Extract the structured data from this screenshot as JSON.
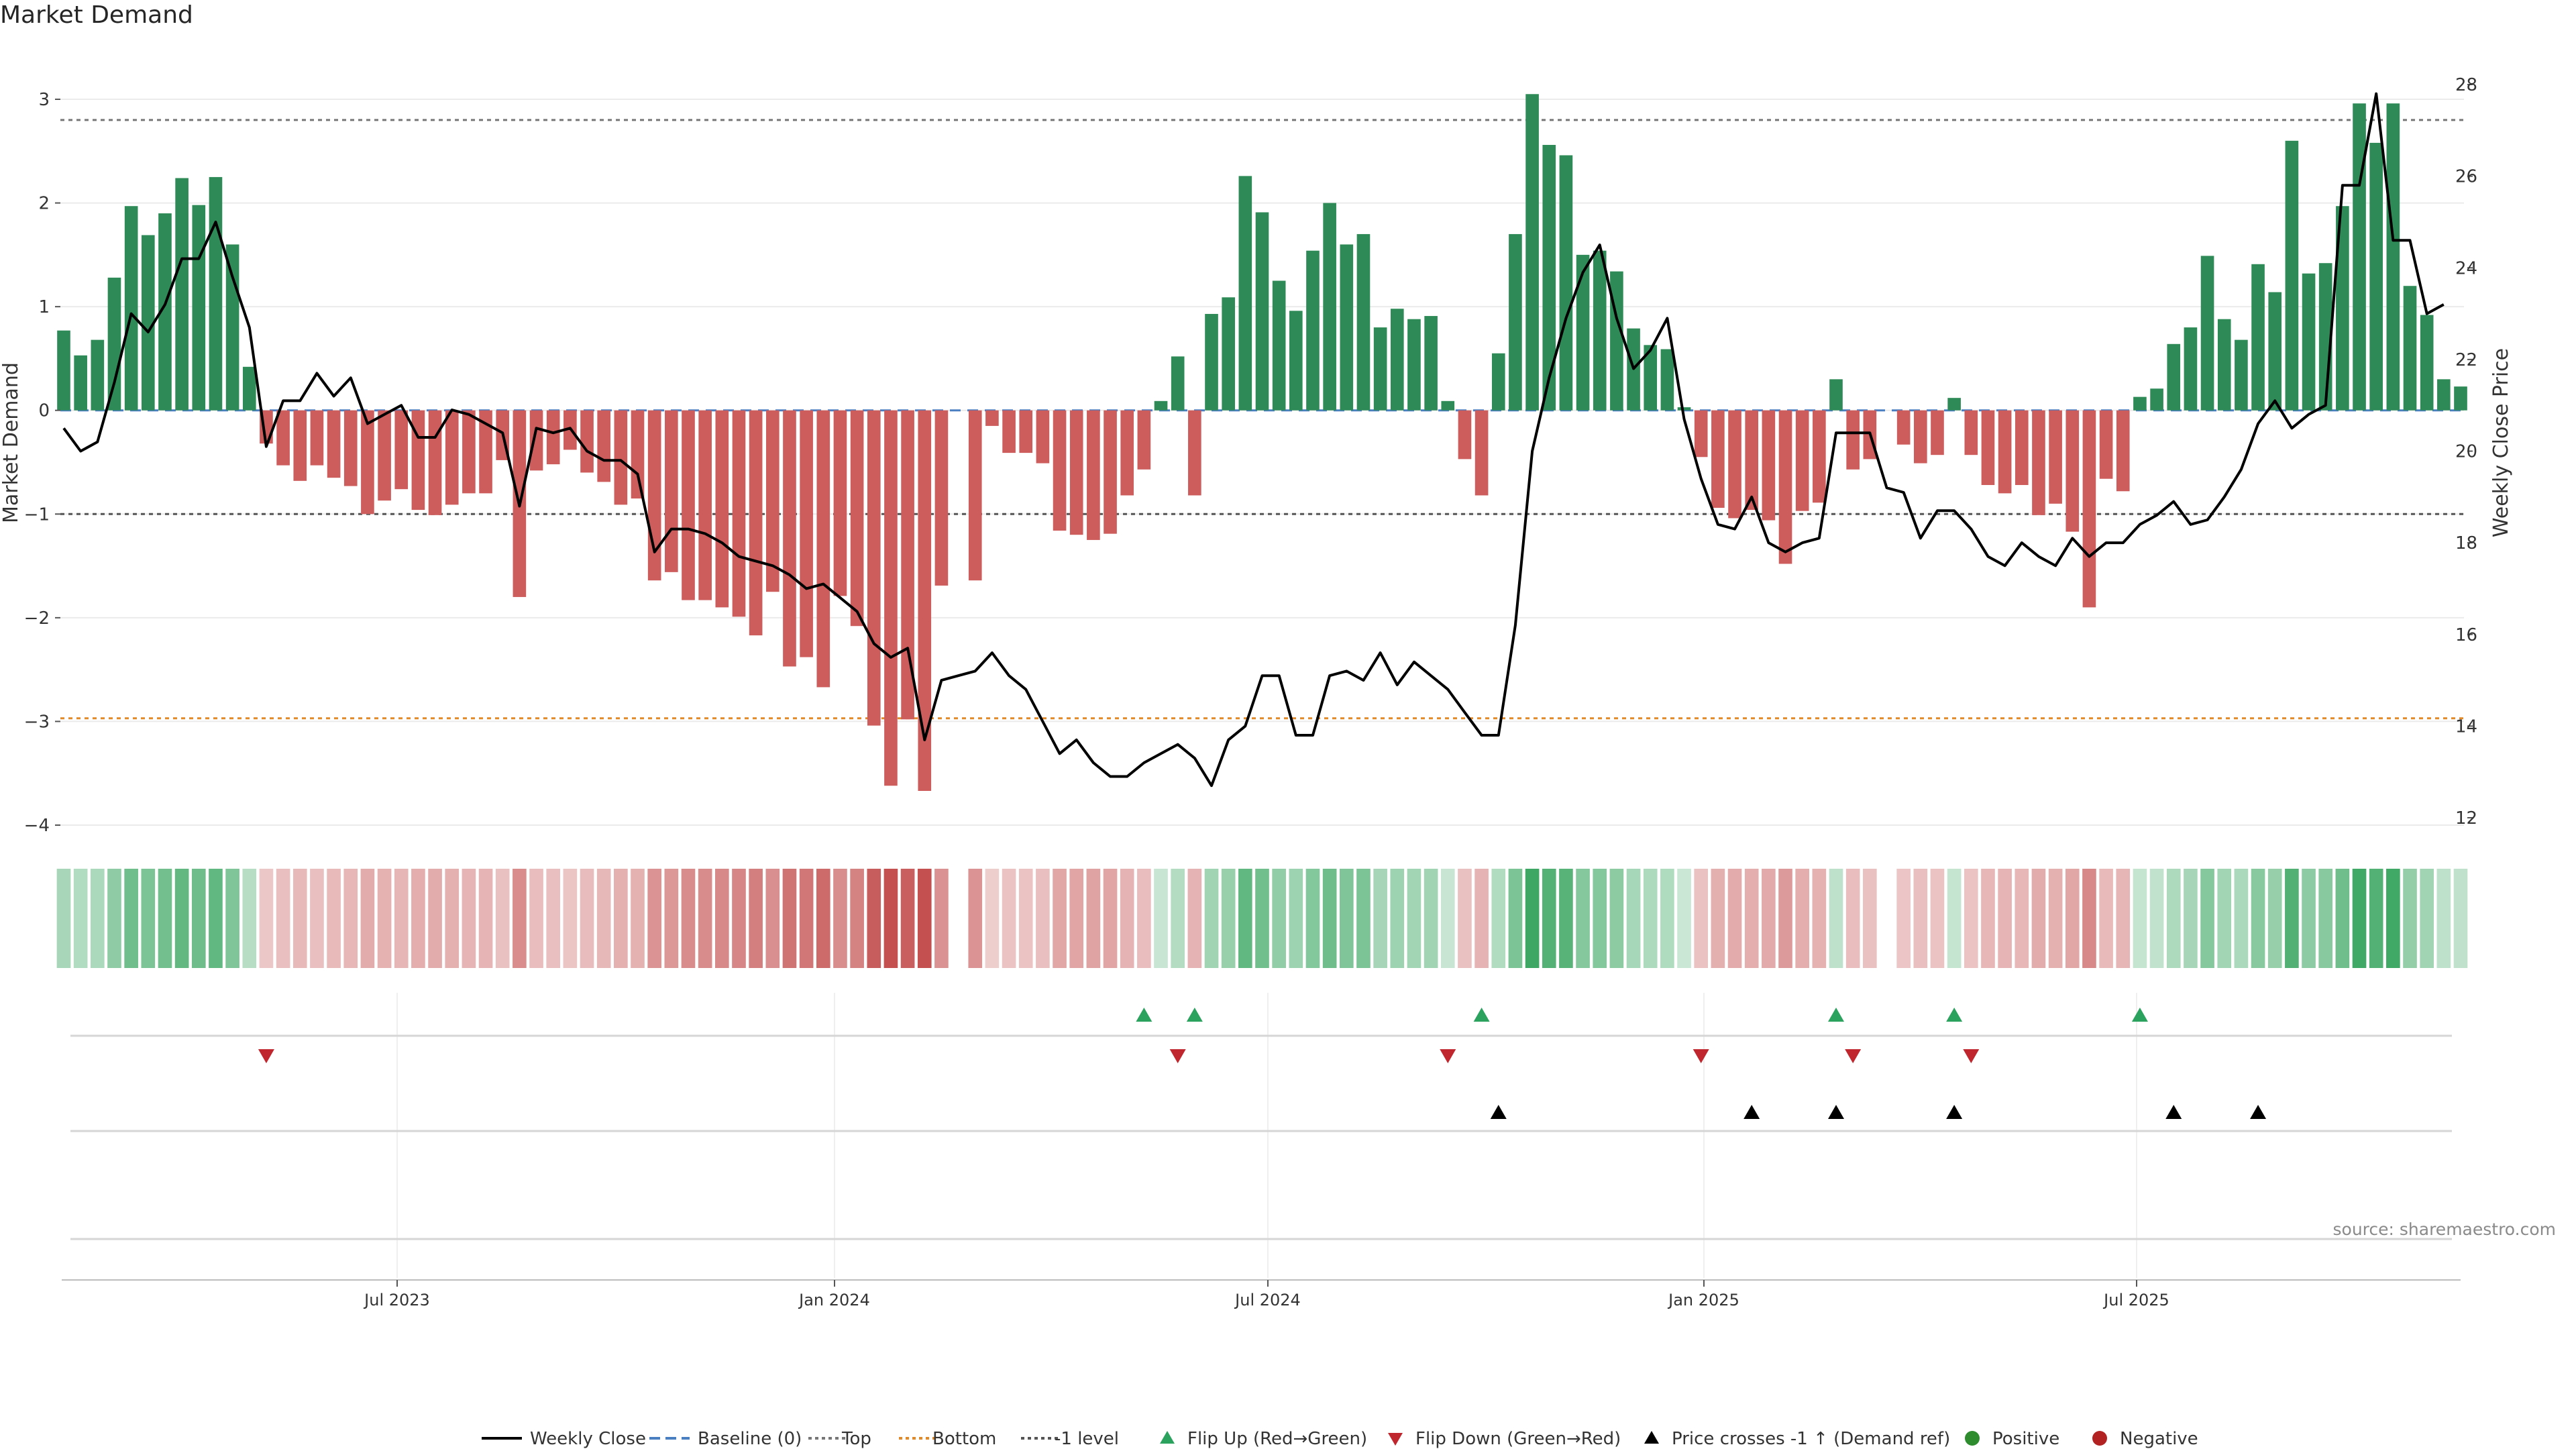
{
  "title": "Market Demand",
  "source": "source: sharemaestro.com",
  "colors": {
    "positive": "#2e8b57",
    "negative": "#cd5c5c",
    "price": "#000000",
    "flip_up": "#2ca25f",
    "flip_down": "#c0262d",
    "cross": "#000000",
    "top_line": "#777777",
    "bottom_line": "#e08a2c",
    "baseline": "#4a7fc1",
    "neg1_line": "#555555"
  },
  "chart_data": {
    "type": "bar",
    "xlabel": "",
    "ylabel": "Market Demand",
    "y2label": "Weekly Close Price",
    "ylim": [
      -4,
      3
    ],
    "y2lim": [
      12,
      28
    ],
    "yticks": [
      {
        "v": 3,
        "t": "3"
      },
      {
        "v": 2,
        "t": "2"
      },
      {
        "v": 1,
        "t": "1"
      },
      {
        "v": 0,
        "t": "0"
      },
      {
        "v": -1,
        "t": "−1"
      },
      {
        "v": -2,
        "t": "−2"
      },
      {
        "v": -3,
        "t": "−3"
      },
      {
        "v": -4,
        "t": "−4"
      }
    ],
    "y2ticks": [
      {
        "v": 28,
        "t": "28"
      },
      {
        "v": 26,
        "t": "26"
      },
      {
        "v": 24,
        "t": "24"
      },
      {
        "v": 22,
        "t": "22"
      },
      {
        "v": 20,
        "t": "20"
      },
      {
        "v": 18,
        "t": "18"
      },
      {
        "v": 16,
        "t": "16"
      },
      {
        "v": 14,
        "t": "14"
      },
      {
        "v": 12,
        "t": "12"
      }
    ],
    "xticks": [
      "Jul 2023",
      "Jan 2024",
      "Jul 2024",
      "Jan 2025",
      "Jul 2025"
    ],
    "reference_lines": {
      "top": 2.8,
      "bottom": -2.97,
      "baseline": 0,
      "neg1": -1
    },
    "demand": [
      0.77,
      0.53,
      0.68,
      1.28,
      1.97,
      1.69,
      1.9,
      2.24,
      1.98,
      2.25,
      1.6,
      0.42,
      -0.32,
      -0.53,
      -0.68,
      -0.53,
      -0.65,
      -0.73,
      -1.0,
      -0.87,
      -0.76,
      -0.96,
      -1.01,
      -0.91,
      -0.8,
      -0.8,
      -0.48,
      -1.8,
      -0.58,
      -0.52,
      -0.38,
      -0.6,
      -0.69,
      -0.91,
      -0.85,
      -1.64,
      -1.56,
      -1.83,
      -1.83,
      -1.9,
      -1.99,
      -2.17,
      -1.75,
      -2.47,
      -2.38,
      -2.67,
      -1.79,
      -2.08,
      -3.04,
      -3.62,
      -2.98,
      -3.67,
      -1.69,
      null,
      -1.64,
      -0.15,
      -0.41,
      -0.41,
      -0.51,
      -1.16,
      -1.2,
      -1.25,
      -1.19,
      -0.82,
      -0.57,
      0.09,
      0.52,
      -0.82,
      0.93,
      1.09,
      2.26,
      1.91,
      1.25,
      0.96,
      1.54,
      2.0,
      1.6,
      1.7,
      0.8,
      0.98,
      0.88,
      0.91,
      0.09,
      -0.47,
      -0.82,
      0.55,
      1.7,
      3.05,
      2.56,
      2.46,
      1.5,
      1.54,
      1.34,
      0.79,
      0.63,
      0.59,
      0.03,
      -0.45,
      -0.94,
      -1.04,
      -0.96,
      -1.06,
      -1.48,
      -0.97,
      -0.89,
      0.3,
      -0.57,
      -0.47,
      null,
      -0.33,
      -0.51,
      -0.43,
      0.12,
      -0.43,
      -0.72,
      -0.8,
      -0.72,
      -1.01,
      -0.9,
      -1.17,
      -1.9,
      -0.66,
      -0.78,
      0.13,
      0.21,
      0.64,
      0.8,
      1.49,
      0.88,
      0.68,
      1.41,
      1.14,
      2.6,
      1.32,
      1.42,
      1.97,
      2.96,
      2.58,
      2.96,
      1.2,
      0.92,
      0.3,
      0.23
    ],
    "price": [
      20.5,
      20.0,
      20.2,
      21.5,
      23.0,
      22.6,
      23.2,
      24.2,
      24.2,
      25.0,
      23.8,
      22.7,
      20.1,
      21.1,
      21.1,
      21.7,
      21.2,
      21.6,
      20.6,
      20.8,
      21.0,
      20.3,
      20.3,
      20.9,
      20.8,
      20.6,
      20.4,
      18.8,
      20.5,
      20.4,
      20.5,
      20.0,
      19.8,
      19.8,
      19.5,
      17.8,
      18.3,
      18.3,
      18.2,
      18.0,
      17.7,
      17.6,
      17.5,
      17.3,
      17.0,
      17.1,
      16.8,
      16.5,
      15.8,
      15.5,
      15.7,
      13.7,
      15.0,
      15.1,
      15.2,
      15.6,
      15.1,
      14.8,
      14.1,
      13.4,
      13.7,
      13.2,
      12.9,
      12.9,
      13.2,
      13.4,
      13.6,
      13.3,
      12.7,
      13.7,
      14.0,
      15.1,
      15.1,
      13.8,
      13.8,
      15.1,
      15.2,
      15.0,
      15.6,
      14.9,
      15.4,
      15.1,
      14.8,
      14.3,
      13.8,
      13.8,
      16.2,
      20.0,
      21.6,
      22.9,
      23.9,
      24.5,
      22.9,
      21.8,
      22.2,
      22.9,
      20.7,
      19.4,
      18.4,
      18.3,
      19.0,
      18.0,
      17.8,
      18.0,
      18.1,
      20.4,
      20.4,
      20.4,
      19.2,
      19.1,
      18.1,
      18.7,
      18.7,
      18.3,
      17.7,
      17.5,
      18.0,
      17.7,
      17.5,
      18.1,
      17.7,
      18.0,
      18.0,
      18.4,
      18.6,
      18.9,
      18.4,
      18.5,
      19.0,
      19.6,
      20.6,
      21.1,
      20.5,
      20.8,
      21.0,
      25.8,
      25.8,
      27.8,
      24.6,
      24.6,
      23.0,
      23.2
    ],
    "flip_up": [
      64,
      67,
      84,
      105,
      112,
      123
    ],
    "flip_down": [
      12,
      66,
      82,
      97,
      106,
      113
    ],
    "price_cross": [
      85,
      100,
      105,
      112,
      125,
      130
    ],
    "legend": [
      {
        "label": "Weekly Close",
        "type": "line"
      },
      {
        "label": "Baseline (0)",
        "type": "dashed"
      },
      {
        "label": "Top",
        "type": "dotted"
      },
      {
        "label": "Bottom",
        "type": "dotted-orange"
      },
      {
        "label": "-1 level",
        "type": "dotted-dark"
      },
      {
        "label": "Flip Up (Red→Green)",
        "type": "tri-up-green"
      },
      {
        "label": "Flip Down (Green→Red)",
        "type": "tri-down-red"
      },
      {
        "label": "Price crosses -1 ↑ (Demand ref)",
        "type": "tri-up-black"
      },
      {
        "label": "Positive",
        "type": "dot-green"
      },
      {
        "label": "Negative",
        "type": "dot-red"
      }
    ]
  }
}
